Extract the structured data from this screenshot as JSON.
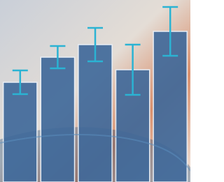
{
  "chart_data": {
    "type": "bar",
    "values": [
      143,
      179,
      197,
      161,
      216
    ],
    "errors": [
      17,
      16,
      24,
      36,
      35
    ],
    "color": "#40699a",
    "error_color": "#2bb3d3",
    "ylim": [
      0,
      261
    ]
  }
}
